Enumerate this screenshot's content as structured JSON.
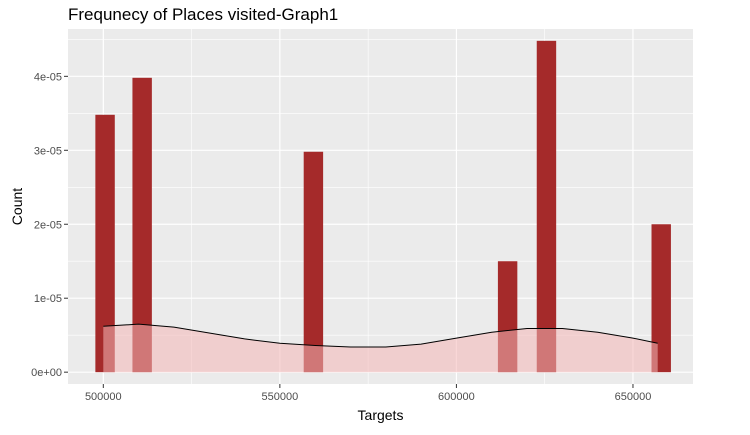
{
  "chart_data": {
    "type": "bar",
    "title": "Frequnecy of Places visited-Graph1",
    "xlabel": "Targets",
    "ylabel": "Count",
    "xlim": [
      490000,
      667000
    ],
    "ylim": [
      -1.6e-06,
      4.64e-05
    ],
    "x_ticks": [
      500000,
      550000,
      600000,
      650000
    ],
    "x_tick_labels": [
      "500000",
      "550000",
      "600000",
      "650000"
    ],
    "y_ticks": [
      0,
      1e-05,
      2e-05,
      3e-05,
      4e-05
    ],
    "y_tick_labels": [
      "0e+00",
      "1e-05",
      "2e-05",
      "3e-05",
      "4e-05"
    ],
    "bin_width": 5500,
    "bars": [
      {
        "x": 500500,
        "value": 3.48e-05
      },
      {
        "x": 511000,
        "value": 3.98e-05
      },
      {
        "x": 559500,
        "value": 2.98e-05
      },
      {
        "x": 614500,
        "value": 1.5e-05
      },
      {
        "x": 625500,
        "value": 4.48e-05
      },
      {
        "x": 658000,
        "value": 2e-05
      }
    ],
    "density_curve": {
      "x": [
        500000,
        510000,
        520000,
        530000,
        540000,
        550000,
        560000,
        570000,
        580000,
        590000,
        600000,
        610000,
        620000,
        630000,
        640000,
        650000,
        657000
      ],
      "y": [
        6.2e-06,
        6.5e-06,
        6.1e-06,
        5.3e-06,
        4.5e-06,
        3.9e-06,
        3.6e-06,
        3.4e-06,
        3.4e-06,
        3.8e-06,
        4.6e-06,
        5.4e-06,
        5.9e-06,
        5.9e-06,
        5.4e-06,
        4.6e-06,
        3.9e-06
      ]
    },
    "grid": true,
    "colors": {
      "bar": "#a52a2a",
      "density_fill": "#f4b6b6",
      "density_line": "#000000",
      "panel": "#ebebeb",
      "grid": "#ffffff"
    }
  }
}
